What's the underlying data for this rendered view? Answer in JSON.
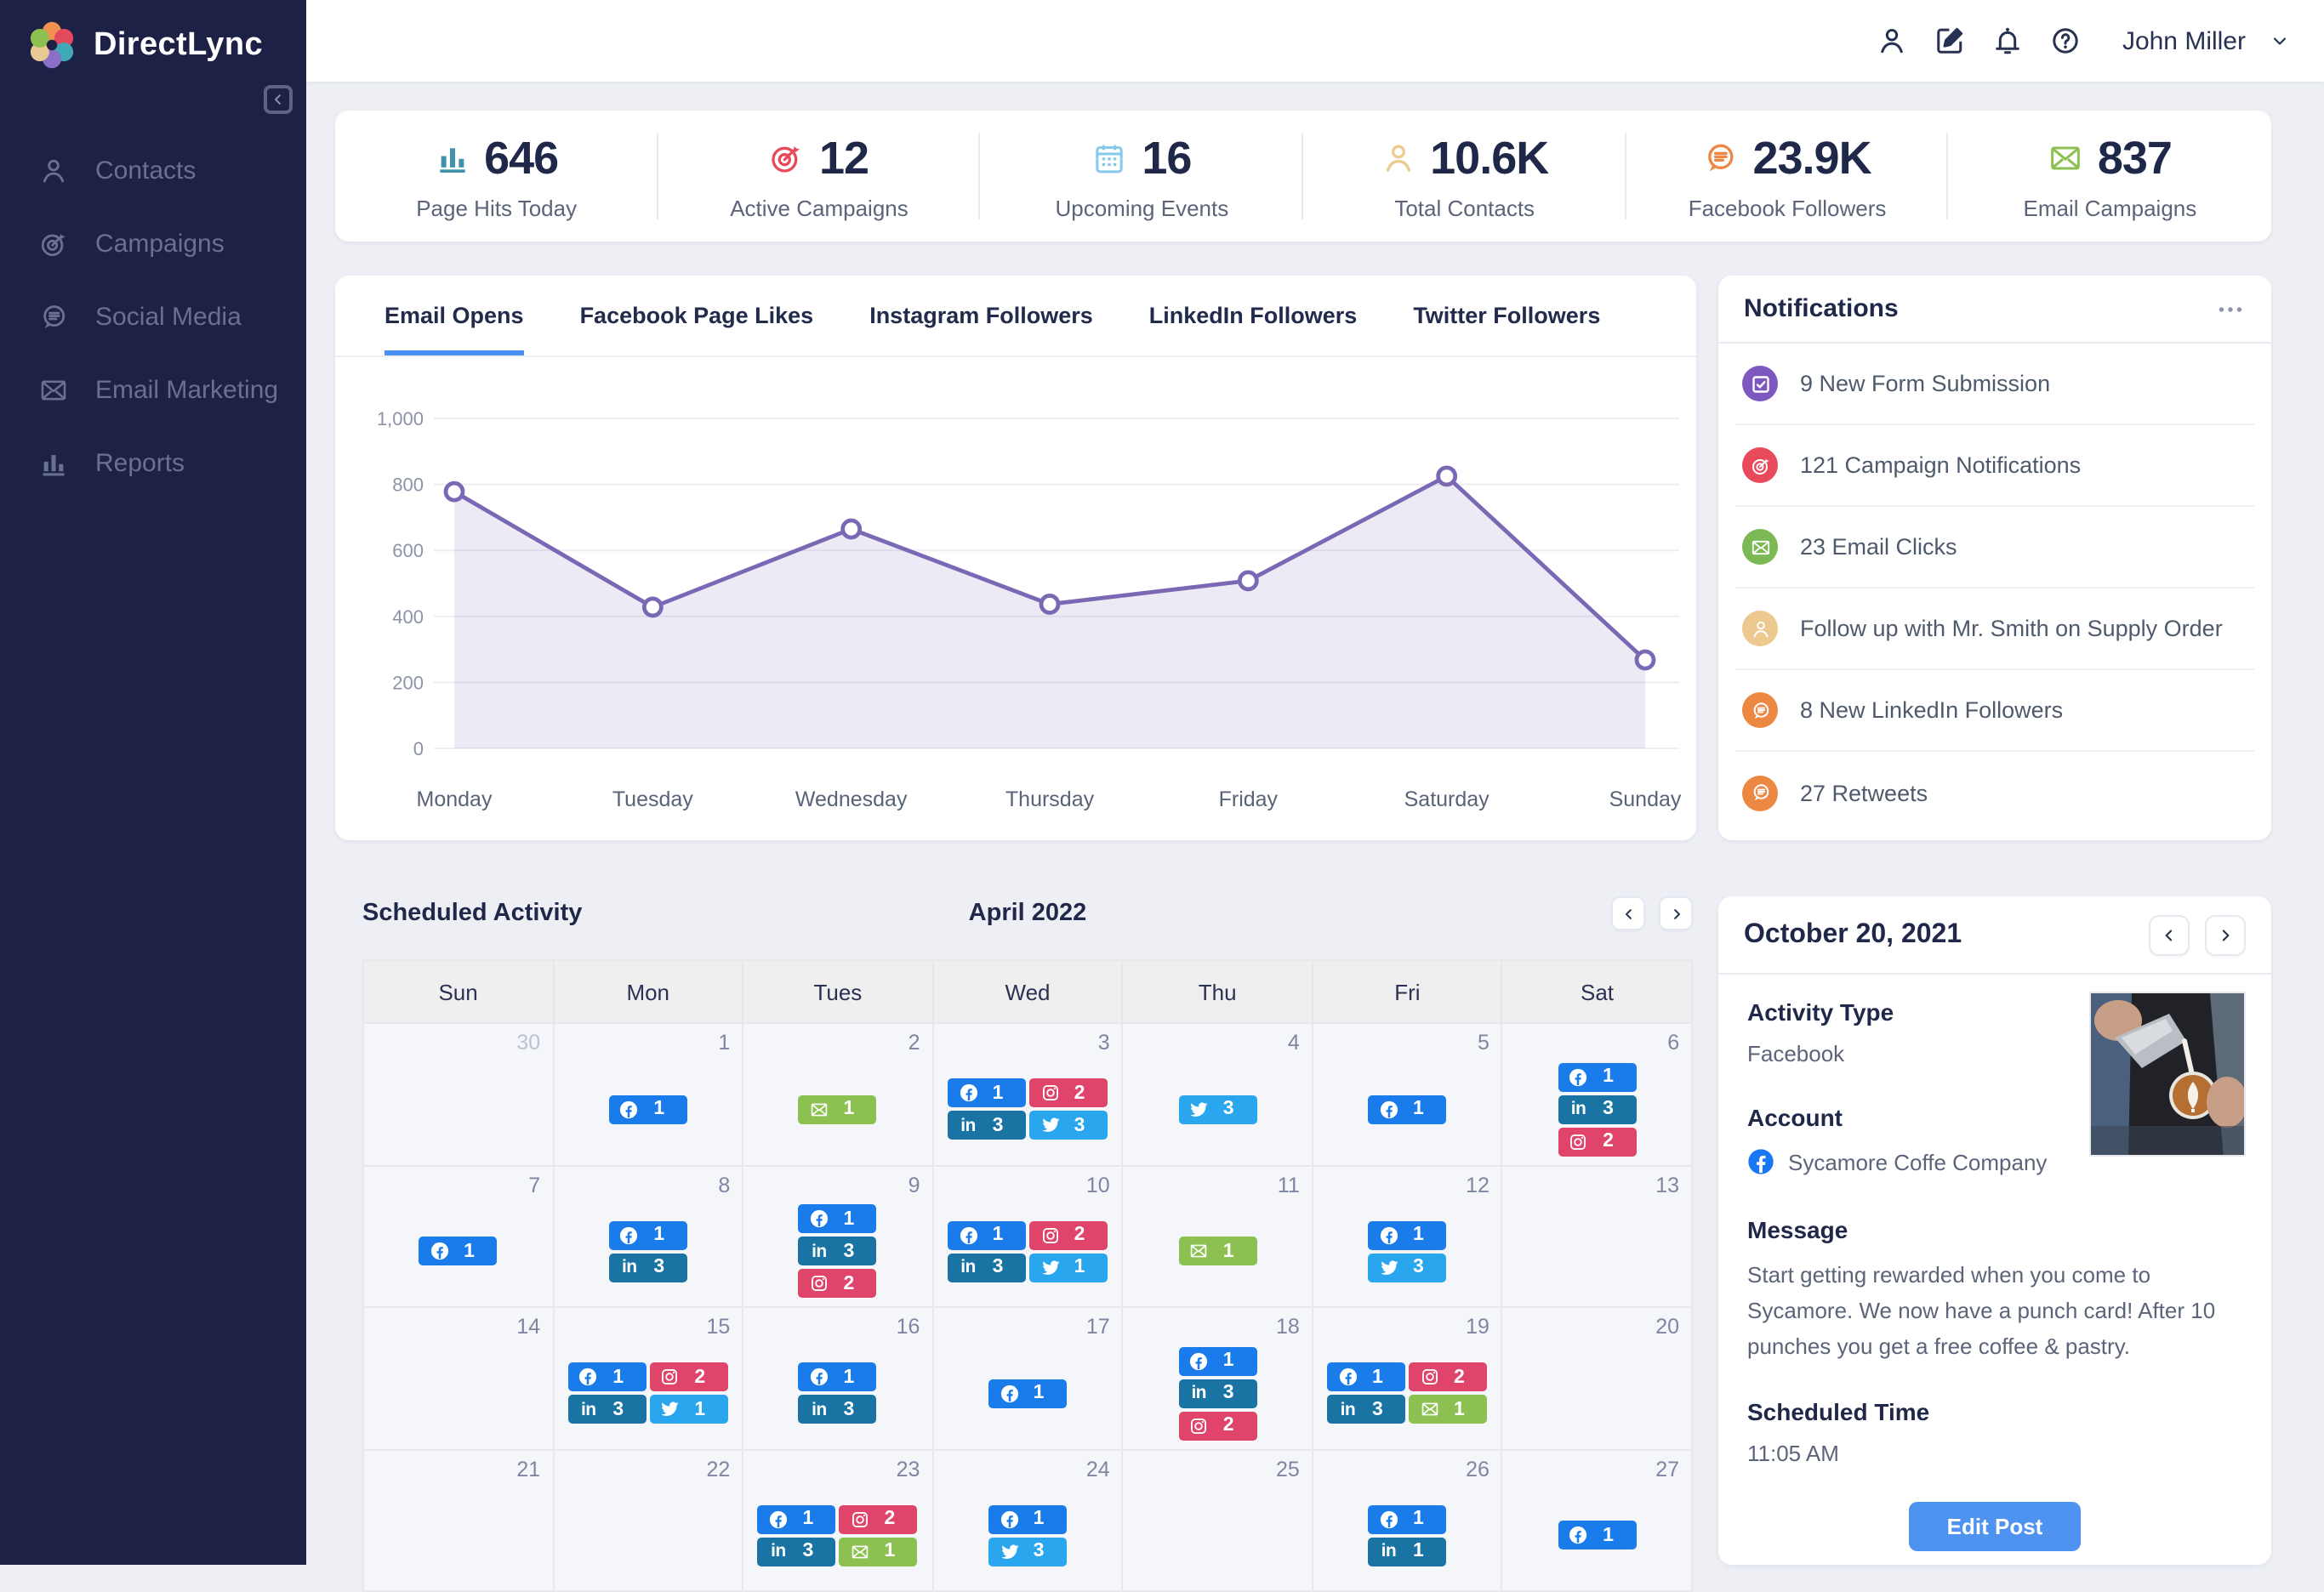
{
  "app": {
    "name": "DirectLync"
  },
  "header": {
    "icons": [
      {
        "name": "user"
      },
      {
        "name": "compose"
      },
      {
        "name": "bell"
      },
      {
        "name": "help"
      }
    ],
    "user_name": "John Miller"
  },
  "sidebar": {
    "items": [
      {
        "label": "Contacts",
        "icon": "person"
      },
      {
        "label": "Campaigns",
        "icon": "target"
      },
      {
        "label": "Social Media",
        "icon": "chat"
      },
      {
        "label": "Email Marketing",
        "icon": "envelope"
      },
      {
        "label": "Reports",
        "icon": "bar-chart"
      }
    ]
  },
  "stats": [
    {
      "value": "646",
      "label": "Page Hits Today",
      "icon": "bar-chart",
      "color": "#3e93ab"
    },
    {
      "value": "12",
      "label": "Active Campaigns",
      "icon": "target",
      "color": "#e84a5c"
    },
    {
      "value": "16",
      "label": "Upcoming Events",
      "icon": "calendar",
      "color": "#85c9ec"
    },
    {
      "value": "10.6K",
      "label": "Total Contacts",
      "icon": "person",
      "color": "#eccb93"
    },
    {
      "value": "23.9K",
      "label": "Facebook Followers",
      "icon": "chat",
      "color": "#ed8843"
    },
    {
      "value": "837",
      "label": "Email Campaigns",
      "icon": "envelope",
      "color": "#8cc152"
    }
  ],
  "chart_tabs": {
    "tabs": [
      "Email Opens",
      "Facebook Page Likes",
      "Instagram Followers",
      "LinkedIn Followers",
      "Twitter Followers"
    ],
    "active_index": 0
  },
  "chart_data": {
    "type": "area",
    "title": "Email Opens",
    "x": [
      "Monday",
      "Tuesday",
      "Wednesday",
      "Thursday",
      "Friday",
      "Saturday",
      "Sunday"
    ],
    "values": [
      778,
      428,
      665,
      437,
      508,
      825,
      268
    ],
    "xlabel": "",
    "ylabel": "",
    "ylim": [
      0,
      1000
    ],
    "y_ticks": [
      0,
      200,
      400,
      600,
      800,
      1000
    ],
    "y_tick_labels": [
      "0",
      "200",
      "400",
      "600",
      "800",
      "1,000"
    ],
    "grid": true,
    "legend": false,
    "line_color": "#7a68b4",
    "fill_color": "rgba(122,104,180,0.14)",
    "point_style": "white circle with purple ring"
  },
  "notifications": {
    "title": "Notifications",
    "menu_icon": "dots",
    "items": [
      {
        "text": "9 New Form Submission",
        "icon": "form-check",
        "color": "#7d58bf"
      },
      {
        "text": "121 Campaign Notifications",
        "icon": "target",
        "color": "#e84a5c"
      },
      {
        "text": "23 Email Clicks",
        "icon": "envelope",
        "color": "#7cb954"
      },
      {
        "text": "Follow up with Mr. Smith on Supply Order",
        "icon": "person",
        "color": "#ecc98f"
      },
      {
        "text": "8 New LinkedIn Followers",
        "icon": "chat",
        "color": "#ed8843"
      },
      {
        "text": "27 Retweets",
        "icon": "chat",
        "color": "#ed8843"
      }
    ]
  },
  "calendar": {
    "title": "Scheduled Activity",
    "month": "April 2022",
    "day_headers": [
      "Sun",
      "Mon",
      "Tues",
      "Wed",
      "Thu",
      "Fri",
      "Sat"
    ],
    "badge_types": {
      "fb": {
        "name": "facebook",
        "color": "#1a7ceb",
        "icon": "facebook"
      },
      "ig": {
        "name": "instagram",
        "color": "#e0446a",
        "icon": "instagram"
      },
      "li": {
        "name": "linkedin",
        "color": "#1974a4",
        "icon": "linkedin"
      },
      "tw": {
        "name": "twitter",
        "color": "#2aa6ee",
        "icon": "twitter"
      },
      "em": {
        "name": "email",
        "color": "#8cc152",
        "icon": "envelope"
      }
    },
    "weeks": [
      [
        {
          "date": "30",
          "muted": true,
          "rows": []
        },
        {
          "date": "1",
          "rows": [
            [
              "fb:1"
            ]
          ]
        },
        {
          "date": "2",
          "rows": [
            [
              "em:1"
            ]
          ]
        },
        {
          "date": "3",
          "rows": [
            [
              "fb:1",
              "ig:2"
            ],
            [
              "li:3",
              "tw:3"
            ]
          ]
        },
        {
          "date": "4",
          "rows": [
            [
              "tw:3"
            ]
          ]
        },
        {
          "date": "5",
          "rows": [
            [
              "fb:1"
            ]
          ]
        },
        {
          "date": "6",
          "rows": [
            [
              "fb:1"
            ],
            [
              "li:3"
            ],
            [
              "ig:2"
            ]
          ]
        }
      ],
      [
        {
          "date": "7",
          "rows": [
            [
              "fb:1"
            ]
          ]
        },
        {
          "date": "8",
          "rows": [
            [
              "fb:1"
            ],
            [
              "li:3"
            ]
          ]
        },
        {
          "date": "9",
          "rows": [
            [
              "fb:1"
            ],
            [
              "li:3"
            ],
            [
              "ig:2"
            ]
          ]
        },
        {
          "date": "10",
          "rows": [
            [
              "fb:1",
              "ig:2"
            ],
            [
              "li:3",
              "tw:1"
            ]
          ]
        },
        {
          "date": "11",
          "rows": [
            [
              "em:1"
            ]
          ]
        },
        {
          "date": "12",
          "rows": [
            [
              "fb:1"
            ],
            [
              "tw:3"
            ]
          ]
        },
        {
          "date": "13",
          "rows": []
        }
      ],
      [
        {
          "date": "14",
          "rows": []
        },
        {
          "date": "15",
          "rows": [
            [
              "fb:1",
              "ig:2"
            ],
            [
              "li:3",
              "tw:1"
            ]
          ]
        },
        {
          "date": "16",
          "rows": [
            [
              "fb:1"
            ],
            [
              "li:3"
            ]
          ]
        },
        {
          "date": "17",
          "rows": [
            [
              "fb:1"
            ]
          ]
        },
        {
          "date": "18",
          "rows": [
            [
              "fb:1"
            ],
            [
              "li:3"
            ],
            [
              "ig:2"
            ]
          ]
        },
        {
          "date": "19",
          "rows": [
            [
              "fb:1",
              "ig:2"
            ],
            [
              "li:3",
              "em:1"
            ]
          ]
        },
        {
          "date": "20",
          "rows": []
        }
      ],
      [
        {
          "date": "21",
          "rows": []
        },
        {
          "date": "22",
          "rows": []
        },
        {
          "date": "23",
          "rows": [
            [
              "fb:1",
              "ig:2"
            ],
            [
              "li:3",
              "em:1"
            ]
          ]
        },
        {
          "date": "24",
          "rows": [
            [
              "fb:1"
            ],
            [
              "tw:3"
            ]
          ]
        },
        {
          "date": "25",
          "rows": []
        },
        {
          "date": "26",
          "rows": [
            [
              "fb:1"
            ],
            [
              "li:1"
            ]
          ]
        },
        {
          "date": "27",
          "rows": [
            [
              "fb:1"
            ]
          ]
        }
      ]
    ]
  },
  "detail": {
    "date_title": "October 20, 2021",
    "activity_type_label": "Activity Type",
    "activity_type_value": "Facebook",
    "account_label": "Account",
    "account_icon": "facebook-brand",
    "account_name": "Sycamore Coffe Company",
    "message_label": "Message",
    "message_text": "Start getting rewarded when you come to Sycamore. We now have a punch card! After 10 punches you get a free coffee & pastry.",
    "scheduled_label": "Scheduled Time",
    "scheduled_value": "11:05 AM",
    "edit_button_label": "Edit Post",
    "photo": "latte-art-photo"
  }
}
